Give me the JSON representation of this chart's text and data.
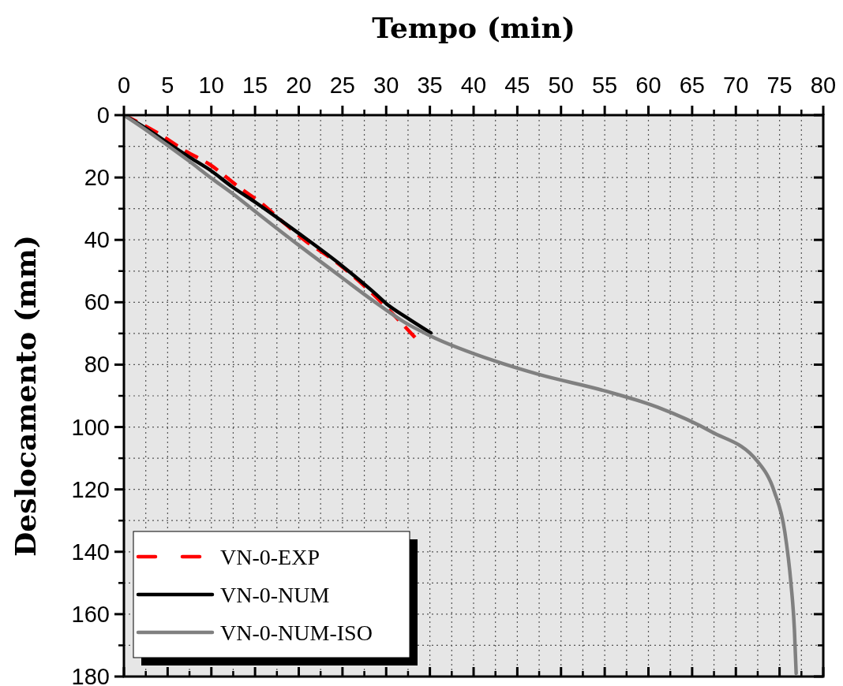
{
  "chart_data": {
    "type": "line",
    "xlabel": "Tempo (min)",
    "ylabel": "Deslocamento (mm)",
    "xlim": [
      0,
      80
    ],
    "xticks": [
      0,
      5,
      10,
      15,
      20,
      25,
      30,
      35,
      40,
      45,
      50,
      55,
      60,
      65,
      70,
      75,
      80
    ],
    "ylim": [
      180,
      0
    ],
    "yticks": [
      0,
      20,
      40,
      60,
      80,
      100,
      120,
      140,
      160,
      180
    ],
    "grid": true,
    "legend": "bottom left",
    "series": [
      {
        "name": "VN-0-EXP",
        "color": "#ff0000",
        "line_style": "dashed",
        "x": [
          0,
          3.6,
          7.1,
          9.8,
          13.3,
          15.8,
          18.2,
          20.9,
          23.6,
          25.5,
          28.2,
          30.6,
          33.3
        ],
        "values": [
          0,
          5.3,
          11.6,
          15.8,
          23.4,
          28.4,
          34.3,
          40.6,
          45.7,
          49.9,
          56.6,
          63.3,
          71.3
        ]
      },
      {
        "name": "VN-0-NUM",
        "color": "#000000",
        "line_style": "solid",
        "x": [
          0,
          2.4,
          4.9,
          7.4,
          9.9,
          12.4,
          14.85,
          19.9,
          24.9,
          28.5,
          30,
          32.4,
          35.1
        ],
        "values": [
          0,
          4,
          8.7,
          13.3,
          17.7,
          23,
          27.6,
          37.7,
          48.2,
          56.6,
          60.4,
          65,
          69.8
        ]
      },
      {
        "name": "VN-0-NUM-ISO",
        "color": "#808080",
        "line_style": "solid",
        "x": [
          0,
          2.4,
          4.9,
          7.4,
          9.9,
          12.4,
          14.85,
          19.9,
          24.9,
          28.5,
          32.4,
          35,
          42.4,
          47.4,
          55,
          61.1,
          67.2,
          72.5,
          74.4,
          75.6,
          76.3,
          76.7,
          76.9
        ],
        "values": [
          0,
          4.5,
          9.5,
          14.6,
          20,
          25.1,
          30.5,
          41.5,
          52,
          59.5,
          66.9,
          70.7,
          78.8,
          83.1,
          88.4,
          93.7,
          101.5,
          111.1,
          120.7,
          133.6,
          150,
          165,
          179
        ]
      }
    ]
  }
}
